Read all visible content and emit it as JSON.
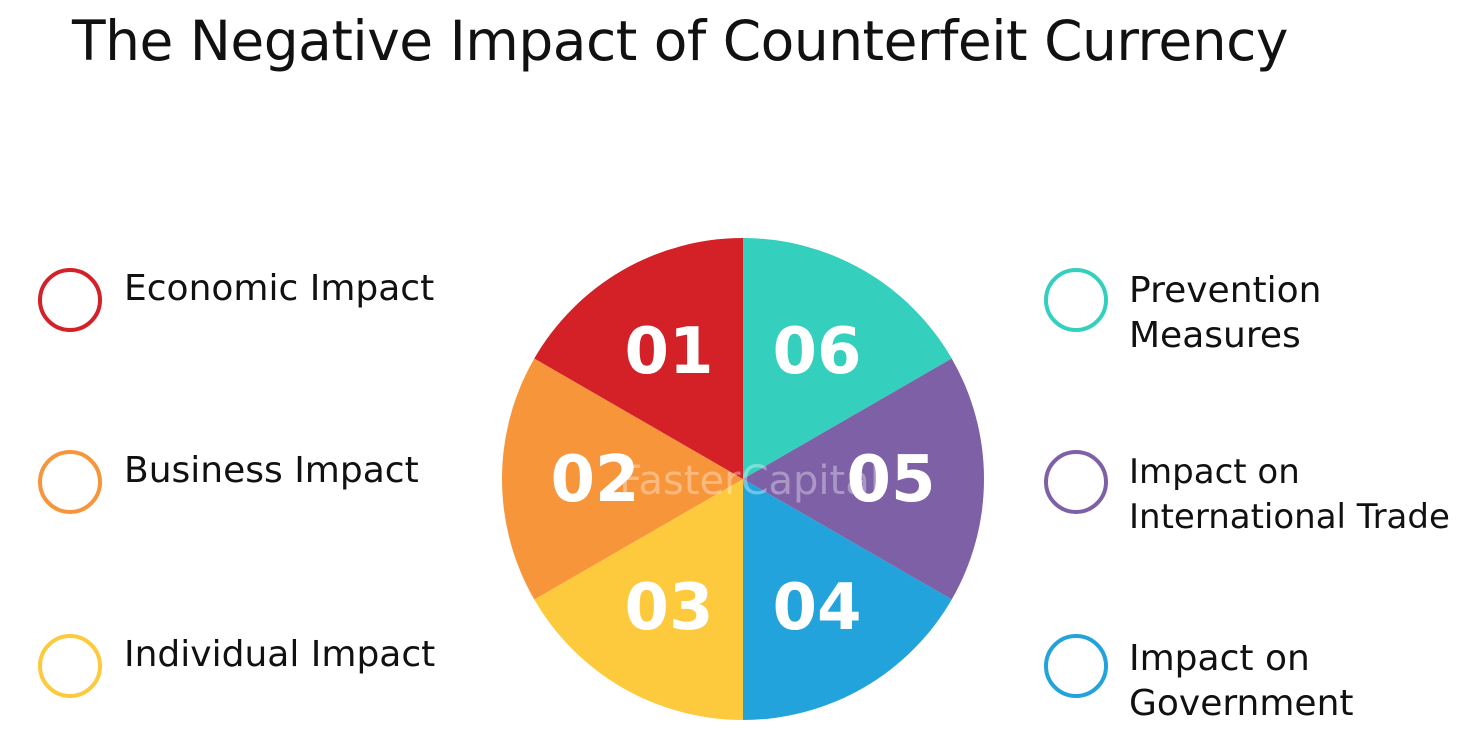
{
  "title": "The Negative Impact of Counterfeit Currency",
  "watermark": "FasterCapital",
  "segments": [
    {
      "number": "01",
      "lines": [
        "Economic Impact"
      ],
      "color": "#d42027"
    },
    {
      "number": "02",
      "lines": [
        "Business Impact"
      ],
      "color": "#f7953b"
    },
    {
      "number": "03",
      "lines": [
        "Individual Impact"
      ],
      "color": "#fdc93d"
    },
    {
      "number": "04",
      "lines": [
        "Impact on",
        "Government"
      ],
      "color": "#22a3db"
    },
    {
      "number": "05",
      "lines": [
        "Impact on",
        "International Trade"
      ],
      "color": "#7d60a6"
    },
    {
      "number": "06",
      "lines": [
        "Prevention",
        "Measures"
      ],
      "color": "#34cfbd"
    }
  ]
}
